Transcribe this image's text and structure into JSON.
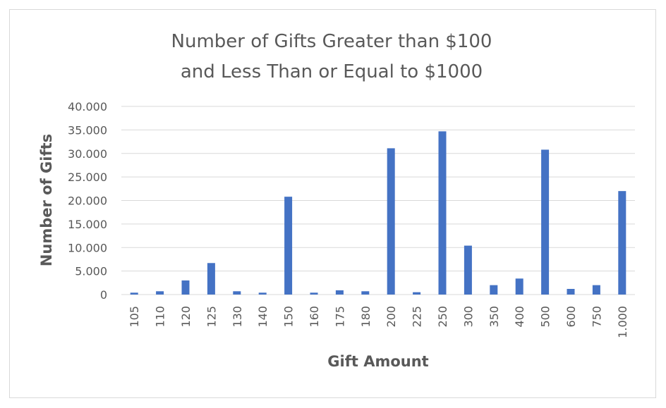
{
  "chart_data": {
    "type": "bar",
    "title_lines": [
      "Number of Gifts Greater than $100",
      "and Less Than or Equal to $1000"
    ],
    "xlabel": "Gift Amount",
    "ylabel": "Number of Gifts",
    "categories": [
      "105",
      "110",
      "120",
      "125",
      "130",
      "140",
      "150",
      "160",
      "175",
      "180",
      "200",
      "225",
      "250",
      "300",
      "350",
      "400",
      "500",
      "600",
      "750",
      "1.000"
    ],
    "values": [
      400,
      700,
      3000,
      6700,
      700,
      400,
      20800,
      400,
      900,
      700,
      31100,
      500,
      34700,
      10400,
      2000,
      3400,
      30800,
      1200,
      2000,
      22000
    ],
    "ylim": [
      0,
      40000
    ],
    "yticks": [
      0,
      5000,
      10000,
      15000,
      20000,
      25000,
      30000,
      35000,
      40000
    ],
    "ytick_labels": [
      "0",
      "5.000",
      "10.000",
      "15.000",
      "20.000",
      "25.000",
      "30.000",
      "35.000",
      "40.000"
    ],
    "grid": true,
    "colors": {
      "bar": "#4472c4",
      "grid": "#d9d9d9",
      "text": "#595959"
    }
  }
}
